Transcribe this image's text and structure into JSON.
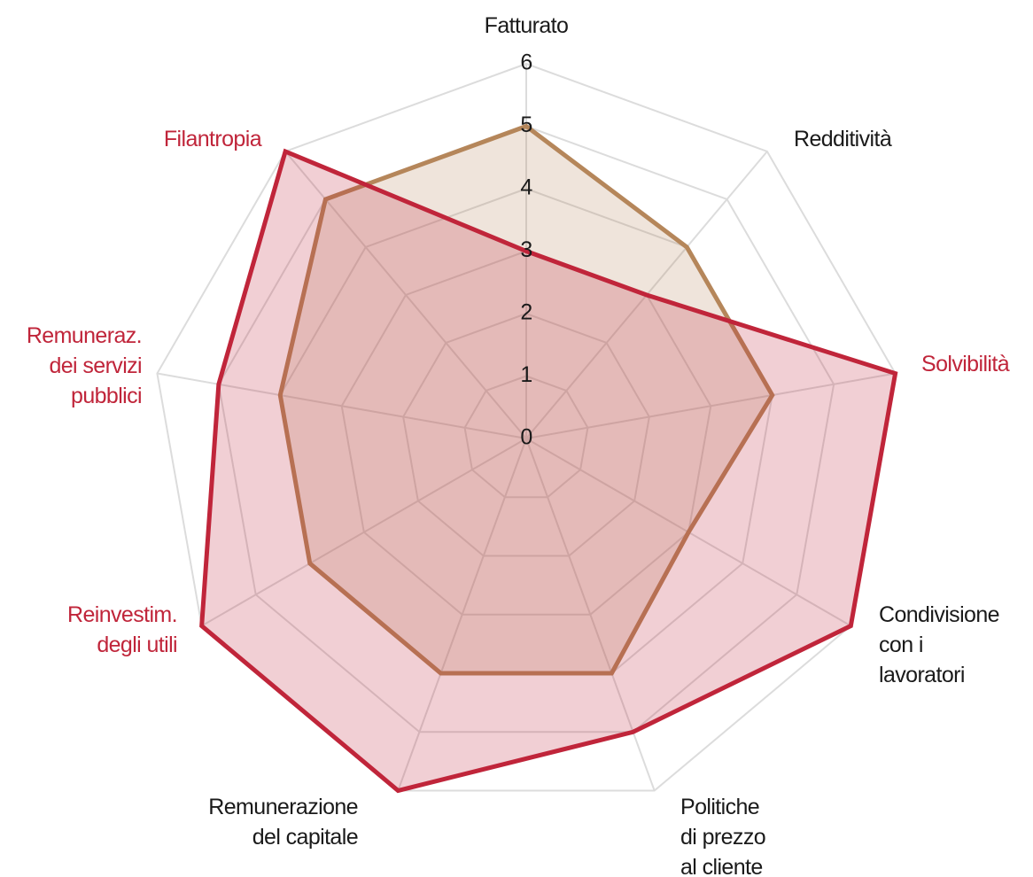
{
  "chart_data": {
    "type": "radar",
    "categories": [
      "Fatturato",
      "Redditività",
      "Solvibilità",
      "Condivisione\ncon i\nlavoratori",
      "Politiche\ndi prezzo\nal cliente",
      "Remunerazione\ndel capitale",
      "Reinvestim.\ndegli utili",
      "Remuneraz.\ndei servizi\npubblici",
      "Filantropia"
    ],
    "category_colors": [
      "#1a1a1a",
      "#1a1a1a",
      "#c0253a",
      "#1a1a1a",
      "#1a1a1a",
      "#1a1a1a",
      "#c0253a",
      "#c0253a",
      "#c0253a"
    ],
    "series": [
      {
        "color": "#b5865a",
        "values": [
          5,
          4,
          4,
          3,
          4,
          4,
          4,
          4,
          5
        ]
      },
      {
        "color": "#c0253a",
        "values": [
          3,
          3,
          6,
          6,
          5,
          6,
          6,
          5,
          6
        ]
      }
    ],
    "rlim": [
      0,
      6
    ],
    "rticks": [
      0,
      1,
      2,
      3,
      4,
      5,
      6
    ],
    "grid": true
  }
}
